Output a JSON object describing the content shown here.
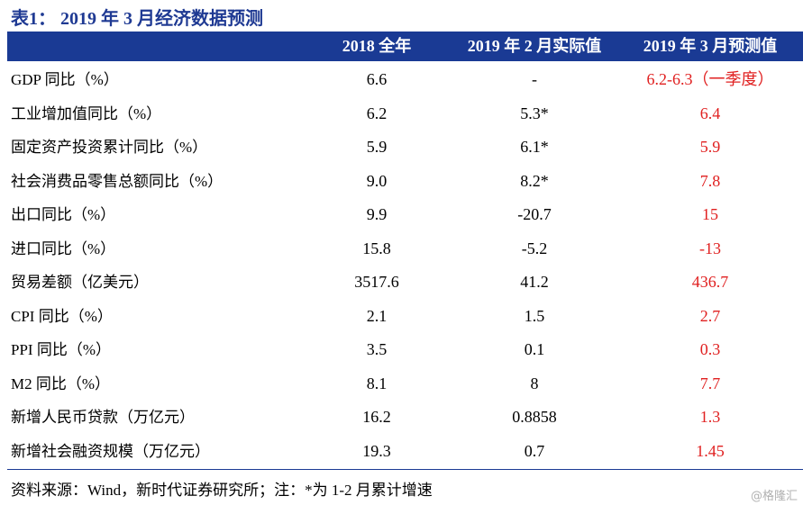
{
  "title": "表1： 2019 年 3 月经济数据预测",
  "table": {
    "headers": [
      "2018 全年",
      "2019 年 2 月实际值",
      "2019 年 3 月预测值"
    ],
    "rows": [
      [
        "GDP 同比（%）",
        "6.6",
        "-",
        "6.2-6.3（一季度）"
      ],
      [
        "工业增加值同比（%）",
        "6.2",
        "5.3*",
        "6.4"
      ],
      [
        "固定资产投资累计同比（%）",
        "5.9",
        "6.1*",
        "5.9"
      ],
      [
        "社会消费品零售总额同比（%）",
        "9.0",
        "8.2*",
        "7.8"
      ],
      [
        "出口同比（%）",
        "9.9",
        "-20.7",
        "15"
      ],
      [
        "进口同比（%）",
        "15.8",
        "-5.2",
        "-13"
      ],
      [
        "贸易差额（亿美元）",
        "3517.6",
        "41.2",
        "436.7"
      ],
      [
        "CPI 同比（%）",
        "2.1",
        "1.5",
        "2.7"
      ],
      [
        "PPI 同比（%）",
        "3.5",
        "0.1",
        "0.3"
      ],
      [
        "M2 同比（%）",
        "8.1",
        "8",
        "7.7"
      ],
      [
        "新增人民币贷款（万亿元）",
        "16.2",
        "0.8858",
        "1.3"
      ],
      [
        "新增社会融资规模（万亿元）",
        "19.3",
        "0.7",
        "1.45"
      ]
    ]
  },
  "source": "资料来源：Wind，新时代证券研究所；注：*为 1-2 月累计增速",
  "watermark": "@格隆汇"
}
